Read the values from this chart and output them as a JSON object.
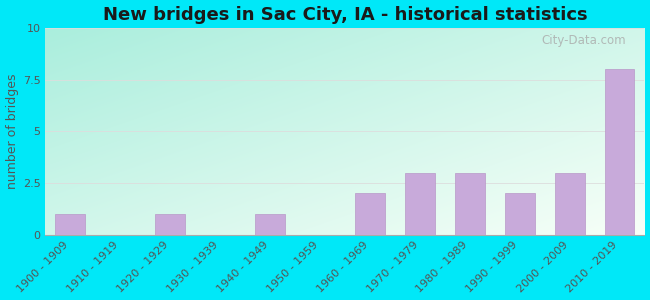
{
  "title": "New bridges in Sac City, IA - historical statistics",
  "ylabel": "number of bridges",
  "categories": [
    "1900 - 1909",
    "1910 - 1919",
    "1920 - 1929",
    "1930 - 1939",
    "1940 - 1949",
    "1950 - 1959",
    "1960 - 1969",
    "1970 - 1979",
    "1980 - 1989",
    "1990 - 1999",
    "2000 - 2009",
    "2010 - 2019"
  ],
  "values": [
    1,
    0,
    1,
    0,
    1,
    0,
    2,
    3,
    3,
    2,
    3,
    8
  ],
  "bar_color": "#c8aada",
  "bar_edge_color": "#b898c8",
  "ylim": [
    0,
    10
  ],
  "yticks": [
    0,
    2.5,
    5.0,
    7.5,
    10
  ],
  "outer_bg": "#00e8f8",
  "grad_top_left": "#aaeedd",
  "grad_bottom_right": "#f8fff8",
  "title_color": "#1a1a1a",
  "watermark_text": "City-Data.com",
  "title_fontsize": 13,
  "ylabel_fontsize": 9,
  "tick_fontsize": 8,
  "grid_color": "#dddddd",
  "tick_color": "#555555"
}
